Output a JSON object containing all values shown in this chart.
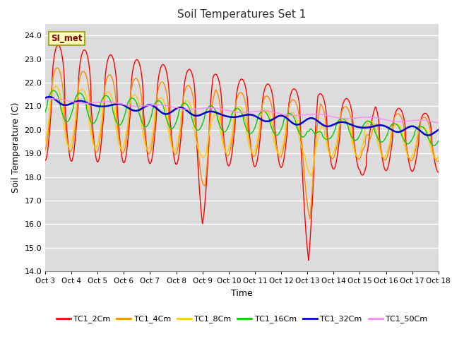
{
  "title": "Soil Temperatures Set 1",
  "xlabel": "Time",
  "ylabel": "Soil Temperature (C)",
  "ylim": [
    14.0,
    24.5
  ],
  "yticks": [
    14.0,
    15.0,
    16.0,
    17.0,
    18.0,
    19.0,
    20.0,
    21.0,
    22.0,
    23.0,
    24.0
  ],
  "x_labels": [
    "Oct 3",
    "Oct 4",
    "Oct 5",
    "Oct 6",
    "Oct 7",
    "Oct 8",
    "Oct 9",
    "Oct 10",
    "Oct 11",
    "Oct 12",
    "Oct 13",
    "Oct 14",
    "Oct 15",
    "Oct 16",
    "Oct 17",
    "Oct 18"
  ],
  "series_colors": [
    "#ff0000",
    "#ff8800",
    "#ffcc00",
    "#00cc00",
    "#0000cc",
    "#ff88ff"
  ],
  "series_names": [
    "TC1_2Cm",
    "TC1_4Cm",
    "TC1_8Cm",
    "TC1_16Cm",
    "TC1_32Cm",
    "TC1_50Cm"
  ],
  "background_color": "#e8e8e8",
  "plot_bg_color": "#dcdcdc",
  "annotation_text": "SI_met",
  "annotation_fg": "#8b0000",
  "annotation_bg": "#ffffbb",
  "annotation_edge": "#999900"
}
